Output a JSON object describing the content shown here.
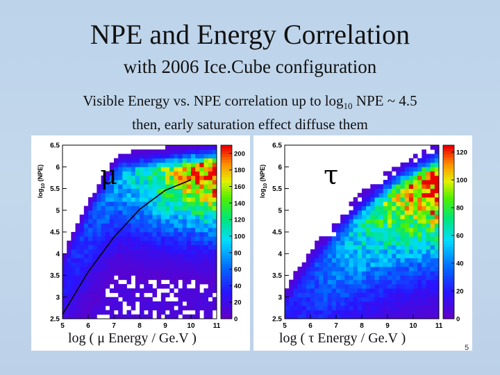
{
  "slide": {
    "title": "NPE and Energy Correlation",
    "subtitle": "with 2006 Ice.Cube configuration",
    "description_part1": "Visible Energy vs. NPE correlation up to log",
    "description_sub": "10",
    "description_part2": " NPE ~ 4.5",
    "description_line2": "then, early saturation effect diffuse them",
    "page_number": "5"
  },
  "colors": {
    "background": "#c2d6eb",
    "fit_curve": "#000000"
  },
  "chart_data": [
    {
      "type": "heatmap",
      "particle_label": "μ",
      "xlabel": "log ( μ Energy / GeV )",
      "ylabel_prefix": "log",
      "ylabel_sub": "10",
      "ylabel_suffix": "(NPE)",
      "xlim": [
        5,
        11
      ],
      "ylim": [
        2.5,
        6.5
      ],
      "xticks": [
        "5",
        "6",
        "7",
        "8",
        "9",
        "10",
        "11"
      ],
      "yticks": [
        "2.5",
        "3",
        "3.5",
        "4",
        "4.5",
        "5",
        "5.5",
        "6",
        "6.5"
      ],
      "colorbar_ticks": [
        "0",
        "20",
        "40",
        "60",
        "80",
        "100",
        "120",
        "140",
        "160",
        "180",
        "200"
      ],
      "colorbar_max": 210,
      "band": {
        "a": 2.6,
        "b": 1.6,
        "c": -0.3,
        "x0": 4.4,
        "width": 0.35,
        "peak": 200,
        "sat": 5.9
      },
      "fit_curve": [
        [
          5,
          2.6
        ],
        [
          6,
          3.58
        ],
        [
          7,
          4.38
        ],
        [
          8,
          5.02
        ],
        [
          9,
          5.46
        ],
        [
          10,
          5.7
        ]
      ],
      "x_label_text": "log ( μ Energy / Ge.V )"
    },
    {
      "type": "heatmap",
      "particle_label": "τ",
      "xlabel": "log ( τ Energy / GeV )",
      "ylabel_prefix": "log",
      "ylabel_sub": "10",
      "ylabel_suffix": "(NPE)",
      "xlim": [
        5,
        11
      ],
      "ylim": [
        2.5,
        6.5
      ],
      "xticks": [
        "5",
        "6",
        "7",
        "8",
        "9",
        "10",
        "11"
      ],
      "yticks": [
        "2.5",
        "3",
        "3.5",
        "4",
        "4.5",
        "5",
        "5.5",
        "6",
        "6.5"
      ],
      "colorbar_ticks": [
        "0",
        "20",
        "40",
        "60",
        "80",
        "100",
        "120"
      ],
      "colorbar_max": 125,
      "band": {
        "a": 2.3,
        "b": 0.9,
        "c": -0.1,
        "x0": 4.6,
        "width": 0.45,
        "peak": 120,
        "sat": 5.8
      },
      "x_label_text": "log ( τ Energy / Ge.V  )"
    }
  ]
}
